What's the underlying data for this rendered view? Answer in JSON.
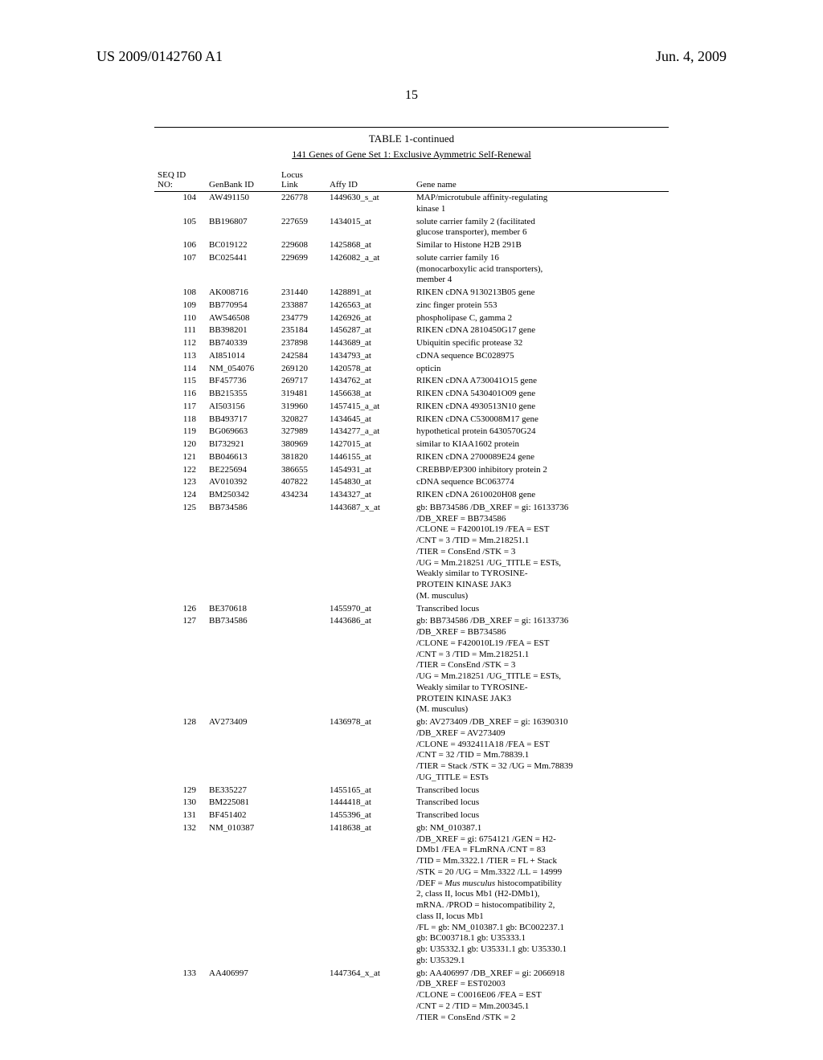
{
  "header": {
    "patent": "US 2009/0142760 A1",
    "date": "Jun. 4, 2009",
    "page_num": "15"
  },
  "table": {
    "title": "TABLE 1-continued",
    "sub": "141 Genes of Gene Set 1: Exclusive Aymmetric Self-Renewal",
    "cols": [
      "SEQ ID\nNO:",
      "GenBank ID",
      "Locus\nLink",
      "Affy ID",
      "Gene name"
    ],
    "rows": [
      {
        "seq": "104",
        "gen": "AW491150",
        "loc": "226778",
        "affy": "1449630_s_at",
        "name": "MAP/microtubule affinity-regulating\nkinase 1"
      },
      {
        "seq": "105",
        "gen": "BB196807",
        "loc": "227659",
        "affy": "1434015_at",
        "name": "solute carrier family 2 (facilitated\nglucose transporter), member 6"
      },
      {
        "seq": "106",
        "gen": "BC019122",
        "loc": "229608",
        "affy": "1425868_at",
        "name": "Similar to Histone H2B 291B"
      },
      {
        "seq": "107",
        "gen": "BC025441",
        "loc": "229699",
        "affy": "1426082_a_at",
        "name": "solute carrier family 16\n(monocarboxylic acid transporters),\nmember 4"
      },
      {
        "seq": "108",
        "gen": "AK008716",
        "loc": "231440",
        "affy": "1428891_at",
        "name": "RIKEN cDNA 9130213B05 gene"
      },
      {
        "seq": "109",
        "gen": "BB770954",
        "loc": "233887",
        "affy": "1426563_at",
        "name": "zinc finger protein 553"
      },
      {
        "seq": "110",
        "gen": "AW546508",
        "loc": "234779",
        "affy": "1426926_at",
        "name": "phospholipase C, gamma 2"
      },
      {
        "seq": "111",
        "gen": "BB398201",
        "loc": "235184",
        "affy": "1456287_at",
        "name": "RIKEN cDNA 2810450G17 gene"
      },
      {
        "seq": "112",
        "gen": "BB740339",
        "loc": "237898",
        "affy": "1443689_at",
        "name": "Ubiquitin specific protease 32"
      },
      {
        "seq": "113",
        "gen": "AI851014",
        "loc": "242584",
        "affy": "1434793_at",
        "name": "cDNA sequence BC028975"
      },
      {
        "seq": "114",
        "gen": "NM_054076",
        "loc": "269120",
        "affy": "1420578_at",
        "name": "opticin"
      },
      {
        "seq": "115",
        "gen": "BF457736",
        "loc": "269717",
        "affy": "1434762_at",
        "name": "RIKEN cDNA A730041O15 gene"
      },
      {
        "seq": "116",
        "gen": "BB215355",
        "loc": "319481",
        "affy": "1456638_at",
        "name": "RIKEN cDNA 5430401O09 gene"
      },
      {
        "seq": "117",
        "gen": "AI503156",
        "loc": "319960",
        "affy": "1457415_a_at",
        "name": "RIKEN cDNA 4930513N10 gene"
      },
      {
        "seq": "118",
        "gen": "BB493717",
        "loc": "320827",
        "affy": "1434645_at",
        "name": "RIKEN cDNA C530008M17 gene"
      },
      {
        "seq": "119",
        "gen": "BG069663",
        "loc": "327989",
        "affy": "1434277_a_at",
        "name": "hypothetical protein 6430570G24"
      },
      {
        "seq": "120",
        "gen": "BI732921",
        "loc": "380969",
        "affy": "1427015_at",
        "name": "similar to KIAA1602 protein"
      },
      {
        "seq": "121",
        "gen": "BB046613",
        "loc": "381820",
        "affy": "1446155_at",
        "name": "RIKEN cDNA 2700089E24 gene"
      },
      {
        "seq": "122",
        "gen": "BE225694",
        "loc": "386655",
        "affy": "1454931_at",
        "name": "CREBBP/EP300 inhibitory protein 2"
      },
      {
        "seq": "123",
        "gen": "AV010392",
        "loc": "407822",
        "affy": "1454830_at",
        "name": "cDNA sequence BC063774"
      },
      {
        "seq": "124",
        "gen": "BM250342",
        "loc": "434234",
        "affy": "1434327_at",
        "name": "RIKEN cDNA 2610020H08 gene"
      },
      {
        "seq": "125",
        "gen": "BB734586",
        "loc": "",
        "affy": "1443687_x_at",
        "name": "gb: BB734586 /DB_XREF = gi: 16133736\n/DB_XREF = BB734586\n/CLONE = F420010L19 /FEA = EST\n/CNT = 3 /TID = Mm.218251.1\n/TIER = ConsEnd /STK = 3\n/UG = Mm.218251 /UG_TITLE = ESTs,\nWeakly similar to TYROSINE-\nPROTEIN KINASE JAK3\n(M. musculus)"
      },
      {
        "seq": "126",
        "gen": "BE370618",
        "loc": "",
        "affy": "1455970_at",
        "name": "Transcribed locus"
      },
      {
        "seq": "127",
        "gen": "BB734586",
        "loc": "",
        "affy": "1443686_at",
        "name": "gb: BB734586 /DB_XREF = gi: 16133736\n/DB_XREF = BB734586\n/CLONE = F420010L19 /FEA = EST\n/CNT = 3 /TID = Mm.218251.1\n/TIER = ConsEnd /STK = 3\n/UG = Mm.218251 /UG_TITLE = ESTs,\nWeakly similar to TYROSINE-\nPROTEIN KINASE JAK3\n(M. musculus)"
      },
      {
        "seq": "128",
        "gen": "AV273409",
        "loc": "",
        "affy": "1436978_at",
        "name": "gb: AV273409 /DB_XREF = gi: 16390310\n/DB_XREF = AV273409\n/CLONE = 4932411A18 /FEA = EST\n/CNT = 32 /TID = Mm.78839.1\n/TIER = Stack /STK = 32 /UG = Mm.78839\n/UG_TITLE = ESTs"
      },
      {
        "seq": "129",
        "gen": "BE335227",
        "loc": "",
        "affy": "1455165_at",
        "name": "Transcribed locus"
      },
      {
        "seq": "130",
        "gen": "BM225081",
        "loc": "",
        "affy": "1444418_at",
        "name": "Transcribed locus"
      },
      {
        "seq": "131",
        "gen": "BF451402",
        "loc": "",
        "affy": "1455396_at",
        "name": "Transcribed locus"
      },
      {
        "seq": "132",
        "gen": "NM_010387",
        "loc": "",
        "affy": "1418638_at",
        "name": "gb: NM_010387.1\n/DB_XREF = gi: 6754121 /GEN = H2-\nDMb1 /FEA = FLmRNA /CNT = 83\n/TID = Mm.3322.1 /TIER = FL + Stack\n/STK = 20 /UG = Mm.3322 /LL = 14999\n/DEF = Mus musculus histocompatibility\n2, class II, locus Mb1 (H2-DMb1),\nmRNA. /PROD = histocompatibility 2,\nclass II, locus Mb1\n/FL = gb: NM_010387.1 gb: BC002237.1\ngb: BC003718.1 gb: U35333.1\ngb: U35332.1 gb: U35331.1 gb: U35330.1\ngb: U35329.1"
      },
      {
        "seq": "133",
        "gen": "AA406997",
        "loc": "",
        "affy": "1447364_x_at",
        "name": "gb: AA406997 /DB_XREF = gi: 2066918\n/DB_XREF = EST02003\n/CLONE = C0016E06 /FEA = EST\n/CNT = 2 /TID = Mm.200345.1\n/TIER = ConsEnd /STK = 2"
      }
    ]
  }
}
